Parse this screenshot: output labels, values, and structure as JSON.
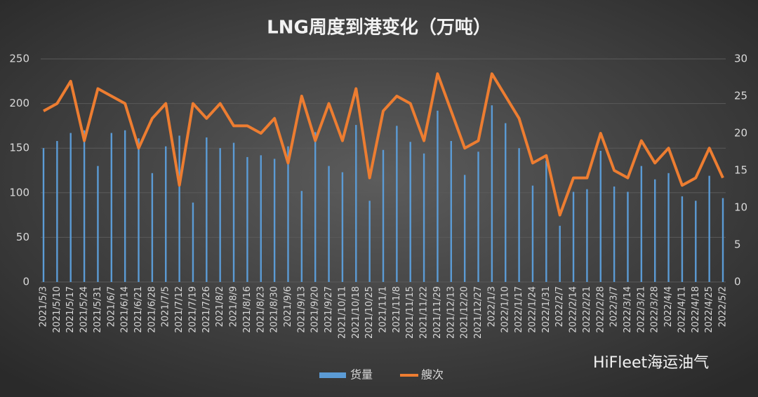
{
  "chart_data": {
    "type": "bar_line",
    "title": "LNG周度到港变化（万吨）",
    "watermark": "HiFleet海运油气",
    "categories": [
      "2021/5/3",
      "2021/5/10",
      "2021/5/17",
      "2021/5/24",
      "2021/5/31",
      "2021/6/7",
      "2021/6/14",
      "2021/6/21",
      "2021/6/28",
      "2021/7/5",
      "2021/7/12",
      "2021/7/19",
      "2021/7/26",
      "2021/8/2",
      "2021/8/9",
      "2021/8/16",
      "2021/8/23",
      "2021/8/30",
      "2021/9/6",
      "2021/9/13",
      "2021/9/20",
      "2021/9/27",
      "2021/10/11",
      "2021/10/18",
      "2021/10/25",
      "2021/11/1",
      "2021/11/8",
      "2021/11/15",
      "2021/11/22",
      "2021/11/29",
      "2021/12/13",
      "2021/12/20",
      "2021/12/27",
      "2022/1/3",
      "2022/1/10",
      "2022/1/17",
      "2022/1/24",
      "2022/1/31",
      "2022/2/7",
      "2022/2/14",
      "2022/2/21",
      "2022/2/28",
      "2022/3/7",
      "2022/3/14",
      "2022/3/21",
      "2022/3/28",
      "2022/4/4",
      "2022/4/11",
      "2022/4/18",
      "2022/4/25",
      "2022/5/2"
    ],
    "series": [
      {
        "name": "货量",
        "color": "#5b9bd5",
        "kind": "bar",
        "values": [
          150,
          158,
          167,
          170,
          130,
          167,
          170,
          161,
          122,
          152,
          164,
          89,
          162,
          150,
          156,
          140,
          142,
          138,
          152,
          102,
          168,
          130,
          123,
          176,
          91,
          148,
          175,
          157,
          144,
          192,
          158,
          120,
          146,
          198,
          178,
          150,
          108,
          136,
          63,
          101,
          104,
          147,
          107,
          101,
          130,
          115,
          122,
          96,
          91,
          119,
          94
        ]
      },
      {
        "name": "艘次",
        "color": "#ed7d31",
        "kind": "line",
        "axis": "y2",
        "values": [
          23,
          24,
          27,
          19,
          26,
          25,
          24,
          18,
          22,
          24,
          13,
          24,
          22,
          24,
          21,
          21,
          20,
          22,
          16,
          25,
          19,
          24,
          19,
          26,
          14,
          23,
          25,
          24,
          19,
          28,
          23,
          18,
          19,
          28,
          25,
          22,
          16,
          17,
          9,
          14,
          14,
          20,
          15,
          14,
          19,
          16,
          18,
          13,
          14,
          18,
          14
        ]
      }
    ],
    "ylim": [
      0,
      250
    ],
    "yticks": [
      0,
      50,
      100,
      150,
      200,
      250
    ],
    "y2lim": [
      0,
      30
    ],
    "y2ticks": [
      0,
      5,
      10,
      15,
      20,
      25,
      30
    ],
    "grid": true,
    "legend": "bottom"
  }
}
